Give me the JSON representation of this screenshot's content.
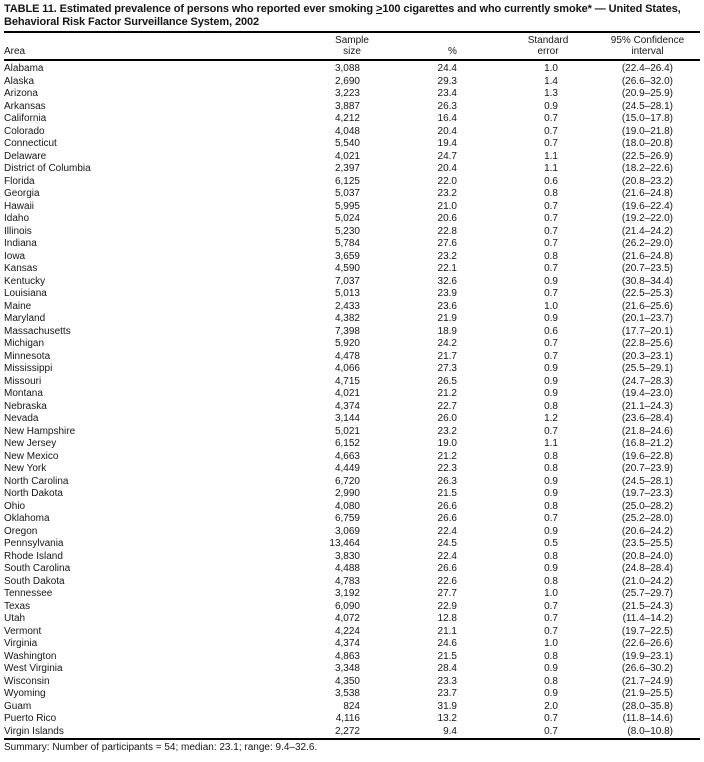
{
  "document": {
    "title": {
      "prefix": "TABLE 11. Estimated prevalence of persons who reported ever smoking ",
      "threshold_symbol": ">",
      "threshold_value": "100",
      "suffix": " cigarettes and who currently smoke* — United States, Behavioral Risk Factor Surveillance System, 2002"
    },
    "summary": "Summary: Number of participants = 54; median: 23.1; range: 9.4–32.6."
  },
  "table": {
    "columns": [
      {
        "key": "area",
        "line1": "",
        "line2": "Area"
      },
      {
        "key": "n",
        "line1": "Sample",
        "line2": "size"
      },
      {
        "key": "pct",
        "line1": "",
        "line2": "%"
      },
      {
        "key": "se",
        "line1": "Standard",
        "line2": "error"
      },
      {
        "key": "ci",
        "line1": "95% Confidence",
        "line2": "interval"
      }
    ],
    "rows": [
      {
        "area": "Alabama",
        "n": "3,088",
        "pct": "24.4",
        "se": "1.0",
        "ci": "(22.4–26.4)"
      },
      {
        "area": "Alaska",
        "n": "2,690",
        "pct": "29.3",
        "se": "1.4",
        "ci": "(26.6–32.0)"
      },
      {
        "area": "Arizona",
        "n": "3,223",
        "pct": "23.4",
        "se": "1.3",
        "ci": "(20.9–25.9)"
      },
      {
        "area": "Arkansas",
        "n": "3,887",
        "pct": "26.3",
        "se": "0.9",
        "ci": "(24.5–28.1)"
      },
      {
        "area": "California",
        "n": "4,212",
        "pct": "16.4",
        "se": "0.7",
        "ci": "(15.0–17.8)"
      },
      {
        "area": "Colorado",
        "n": "4,048",
        "pct": "20.4",
        "se": "0.7",
        "ci": "(19.0–21.8)"
      },
      {
        "area": "Connecticut",
        "n": "5,540",
        "pct": "19.4",
        "se": "0.7",
        "ci": "(18.0–20.8)"
      },
      {
        "area": "Delaware",
        "n": "4,021",
        "pct": "24.7",
        "se": "1.1",
        "ci": "(22.5–26.9)"
      },
      {
        "area": "District of Columbia",
        "n": "2,397",
        "pct": "20.4",
        "se": "1.1",
        "ci": "(18.2–22.6)"
      },
      {
        "area": "Florida",
        "n": "6,125",
        "pct": "22.0",
        "se": "0.6",
        "ci": "(20.8–23.2)"
      },
      {
        "area": "Georgia",
        "n": "5,037",
        "pct": "23.2",
        "se": "0.8",
        "ci": "(21.6–24.8)"
      },
      {
        "area": "Hawaii",
        "n": "5,995",
        "pct": "21.0",
        "se": "0.7",
        "ci": "(19.6–22.4)"
      },
      {
        "area": "Idaho",
        "n": "5,024",
        "pct": "20.6",
        "se": "0.7",
        "ci": "(19.2–22.0)"
      },
      {
        "area": "Illinois",
        "n": "5,230",
        "pct": "22.8",
        "se": "0.7",
        "ci": "(21.4–24.2)"
      },
      {
        "area": "Indiana",
        "n": "5,784",
        "pct": "27.6",
        "se": "0.7",
        "ci": "(26.2–29.0)"
      },
      {
        "area": "Iowa",
        "n": "3,659",
        "pct": "23.2",
        "se": "0.8",
        "ci": "(21.6–24.8)"
      },
      {
        "area": "Kansas",
        "n": "4,590",
        "pct": "22.1",
        "se": "0.7",
        "ci": "(20.7–23.5)"
      },
      {
        "area": "Kentucky",
        "n": "7,037",
        "pct": "32.6",
        "se": "0.9",
        "ci": "(30.8–34.4)"
      },
      {
        "area": "Louisiana",
        "n": "5,013",
        "pct": "23.9",
        "se": "0.7",
        "ci": "(22.5–25.3)"
      },
      {
        "area": "Maine",
        "n": "2,433",
        "pct": "23.6",
        "se": "1.0",
        "ci": "(21.6–25.6)"
      },
      {
        "area": "Maryland",
        "n": "4,382",
        "pct": "21.9",
        "se": "0.9",
        "ci": "(20.1–23.7)"
      },
      {
        "area": "Massachusetts",
        "n": "7,398",
        "pct": "18.9",
        "se": "0.6",
        "ci": "(17.7–20.1)"
      },
      {
        "area": "Michigan",
        "n": "5,920",
        "pct": "24.2",
        "se": "0.7",
        "ci": "(22.8–25.6)"
      },
      {
        "area": "Minnesota",
        "n": "4,478",
        "pct": "21.7",
        "se": "0.7",
        "ci": "(20.3–23.1)"
      },
      {
        "area": "Mississippi",
        "n": "4,066",
        "pct": "27.3",
        "se": "0.9",
        "ci": "(25.5–29.1)"
      },
      {
        "area": "Missouri",
        "n": "4,715",
        "pct": "26.5",
        "se": "0.9",
        "ci": "(24.7–28.3)"
      },
      {
        "area": "Montana",
        "n": "4,021",
        "pct": "21.2",
        "se": "0.9",
        "ci": "(19.4–23.0)"
      },
      {
        "area": "Nebraska",
        "n": "4,374",
        "pct": "22.7",
        "se": "0.8",
        "ci": "(21.1–24.3)"
      },
      {
        "area": "Nevada",
        "n": "3,144",
        "pct": "26.0",
        "se": "1.2",
        "ci": "(23.6–28.4)"
      },
      {
        "area": "New Hampshire",
        "n": "5,021",
        "pct": "23.2",
        "se": "0.7",
        "ci": "(21.8–24.6)"
      },
      {
        "area": "New Jersey",
        "n": "6,152",
        "pct": "19.0",
        "se": "1.1",
        "ci": "(16.8–21.2)"
      },
      {
        "area": "New Mexico",
        "n": "4,663",
        "pct": "21.2",
        "se": "0.8",
        "ci": "(19.6–22.8)"
      },
      {
        "area": "New York",
        "n": "4,449",
        "pct": "22.3",
        "se": "0.8",
        "ci": "(20.7–23.9)"
      },
      {
        "area": "North Carolina",
        "n": "6,720",
        "pct": "26.3",
        "se": "0.9",
        "ci": "(24.5–28.1)"
      },
      {
        "area": "North Dakota",
        "n": "2,990",
        "pct": "21.5",
        "se": "0.9",
        "ci": "(19.7–23.3)"
      },
      {
        "area": "Ohio",
        "n": "4,080",
        "pct": "26.6",
        "se": "0.8",
        "ci": "(25.0–28.2)"
      },
      {
        "area": "Oklahoma",
        "n": "6,759",
        "pct": "26.6",
        "se": "0.7",
        "ci": "(25.2–28.0)"
      },
      {
        "area": "Oregon",
        "n": "3,069",
        "pct": "22.4",
        "se": "0.9",
        "ci": "(20.6–24.2)"
      },
      {
        "area": "Pennsylvania",
        "n": "13,464",
        "pct": "24.5",
        "se": "0.5",
        "ci": "(23.5–25.5)"
      },
      {
        "area": "Rhode Island",
        "n": "3,830",
        "pct": "22.4",
        "se": "0.8",
        "ci": "(20.8–24.0)"
      },
      {
        "area": "South Carolina",
        "n": "4,488",
        "pct": "26.6",
        "se": "0.9",
        "ci": "(24.8–28.4)"
      },
      {
        "area": "South Dakota",
        "n": "4,783",
        "pct": "22.6",
        "se": "0.8",
        "ci": "(21.0–24.2)"
      },
      {
        "area": "Tennessee",
        "n": "3,192",
        "pct": "27.7",
        "se": "1.0",
        "ci": "(25.7–29.7)"
      },
      {
        "area": "Texas",
        "n": "6,090",
        "pct": "22.9",
        "se": "0.7",
        "ci": "(21.5–24.3)"
      },
      {
        "area": "Utah",
        "n": "4,072",
        "pct": "12.8",
        "se": "0.7",
        "ci": "(11.4–14.2)"
      },
      {
        "area": "Vermont",
        "n": "4,224",
        "pct": "21.1",
        "se": "0.7",
        "ci": "(19.7–22.5)"
      },
      {
        "area": "Virginia",
        "n": "4,374",
        "pct": "24.6",
        "se": "1.0",
        "ci": "(22.6–26.6)"
      },
      {
        "area": "Washington",
        "n": "4,863",
        "pct": "21.5",
        "se": "0.8",
        "ci": "(19.9–23.1)"
      },
      {
        "area": "West Virginia",
        "n": "3,348",
        "pct": "28.4",
        "se": "0.9",
        "ci": "(26.6–30.2)"
      },
      {
        "area": "Wisconsin",
        "n": "4,350",
        "pct": "23.3",
        "se": "0.8",
        "ci": "(21.7–24.9)"
      },
      {
        "area": "Wyoming",
        "n": "3,538",
        "pct": "23.7",
        "se": "0.9",
        "ci": "(21.9–25.5)"
      },
      {
        "area": "Guam",
        "n": "824",
        "pct": "31.9",
        "se": "2.0",
        "ci": "(28.0–35.8)"
      },
      {
        "area": "Puerto Rico",
        "n": "4,116",
        "pct": "13.2",
        "se": "0.7",
        "ci": "(11.8–14.6)"
      },
      {
        "area": "Virgin Islands",
        "n": "2,272",
        "pct": "9.4",
        "se": "0.7",
        "ci": "(8.0–10.8)"
      }
    ]
  }
}
